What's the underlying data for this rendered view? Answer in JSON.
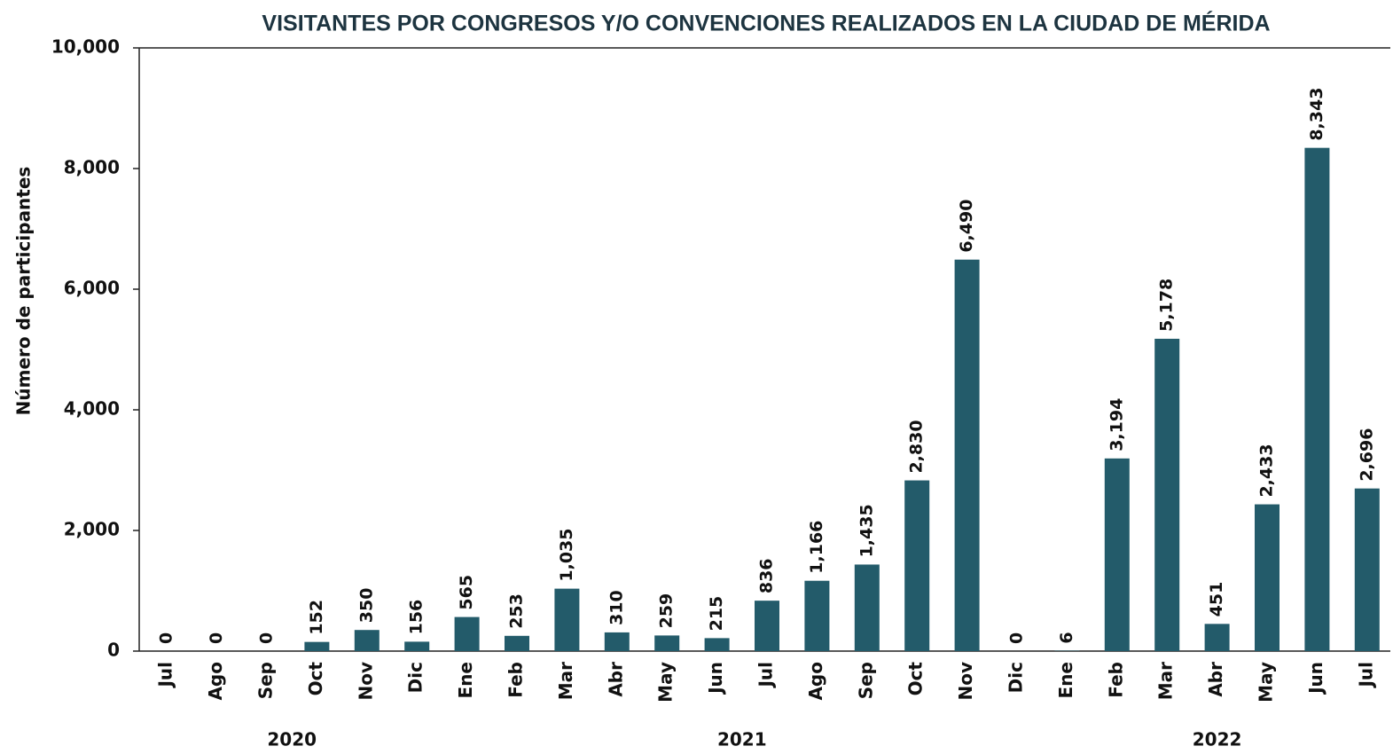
{
  "chart_data": {
    "type": "bar",
    "title": "VISITANTES POR CONGRESOS Y/O CONVENCIONES REALIZADOS EN LA CIUDAD DE MÉRIDA",
    "y_label": "Número de participantes",
    "categories": [
      "Jul",
      "Ago",
      "Sep",
      "Oct",
      "Nov",
      "Dic",
      "Ene",
      "Feb",
      "Mar",
      "Abr",
      "May",
      "Jun",
      "Jul",
      "Ago",
      "Sep",
      "Oct",
      "Nov",
      "Dic",
      "Ene",
      "Feb",
      "Mar",
      "Abr",
      "May",
      "Jun",
      "Jul"
    ],
    "groups": [
      "2020",
      "2021",
      "2022"
    ],
    "values": [
      0,
      0,
      0,
      152,
      350,
      156,
      565,
      253,
      1035,
      310,
      259,
      215,
      836,
      1166,
      1435,
      2830,
      6490,
      0,
      6,
      3194,
      5178,
      451,
      2433,
      8343,
      2696
    ],
    "value_labels": [
      "0",
      "0",
      "0",
      "152",
      "350",
      "156",
      "565",
      "253",
      "1,035",
      "310",
      "259",
      "215",
      "836",
      "1,166",
      "1,435",
      "2,830",
      "6,490",
      "0",
      "6",
      "3,194",
      "5,178",
      "451",
      "2,433",
      "8,343",
      "2,696"
    ],
    "color": "#235b6a",
    "ylim": [
      0,
      10000
    ],
    "yticks": [
      0,
      {
        "value": 2000,
        "label": "2,000"
      },
      {
        "value": 4000,
        "label": "4,000"
      },
      {
        "value": 6000,
        "label": "6,000"
      },
      {
        "value": 8000,
        "label": "8,000"
      },
      {
        "value": 10000,
        "label": "10,000"
      }
    ],
    "grid": false
  }
}
